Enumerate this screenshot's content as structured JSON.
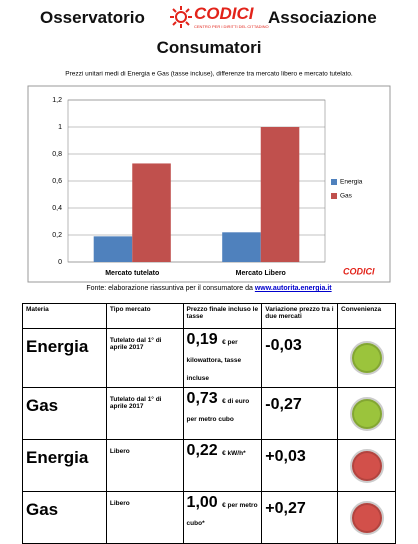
{
  "header": {
    "title_left": "Osservatorio",
    "logo": "CODICI",
    "logo_tagline": "CENTRO PER I DIRITTI DEL CITTADINO",
    "title_right": "Associazione",
    "title_line2": "Consumatori"
  },
  "chart_data": {
    "type": "bar",
    "title": "Prezzi unitari medi di Energia e Gas (tasse incluse), differenze tra mercato libero e mercato tutelato.",
    "categories": [
      "Mercato tutelato",
      "Mercato Libero"
    ],
    "series": [
      {
        "name": "Energia",
        "color": "#4f81bd",
        "values": [
          0.19,
          0.22
        ]
      },
      {
        "name": "Gas",
        "color": "#c0504d",
        "values": [
          0.73,
          1.0
        ]
      }
    ],
    "ylim": [
      0,
      1.2
    ],
    "yticks": [
      0,
      {
        "value": 0.2,
        "label": "0,2"
      },
      {
        "value": 0.4,
        "label": "0,4"
      },
      {
        "value": 0.6,
        "label": "0,6"
      },
      {
        "value": 0.8,
        "label": "0,8"
      },
      1,
      {
        "value": 1.2,
        "label": "1,2"
      }
    ],
    "grid": true,
    "legend": "right",
    "logo": "CODICI"
  },
  "source": {
    "text": "Fonte:  elaborazione riassuntiva per il consumatore da ",
    "link": "www.autorita.energia.it"
  },
  "table": {
    "columns": [
      "Materia",
      "Tipo mercato",
      "Prezzo finale incluso le tasse",
      "Variazione prezzo tra i due mercati",
      "Convenienza"
    ],
    "rows": [
      {
        "materia": "Energia",
        "tipo": "Tutelato dal 1° di aprile 2017",
        "prezzo": "0,19",
        "unita": "€ per kilowattora, tasse incluse",
        "variazione": "-0,03",
        "convenienza_color": "#9bc43c"
      },
      {
        "materia": "Gas",
        "tipo": "Tutelato dal 1° di aprile 2017",
        "prezzo": "0,73",
        "unita": "€ di euro per metro cubo",
        "variazione": "-0,27",
        "convenienza_color": "#9bc43c"
      },
      {
        "materia": "Energia",
        "tipo": "Libero",
        "prezzo": "0,22",
        "unita": "€ kW/h*",
        "variazione": "+0,03",
        "convenienza_color": "#d2504a"
      },
      {
        "materia": "Gas",
        "tipo": "Libero",
        "prezzo": "1,00",
        "unita": "€ per metro cubo*",
        "variazione": "+0,27",
        "convenienza_color": "#d2504a"
      }
    ]
  }
}
